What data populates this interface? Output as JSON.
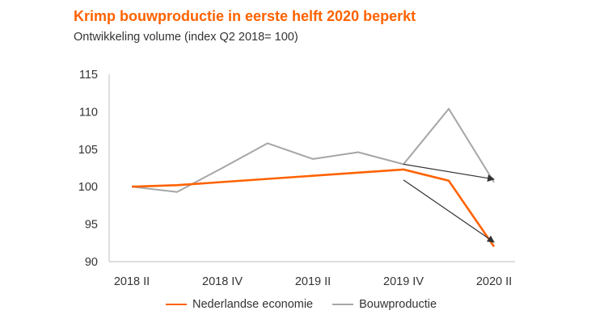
{
  "title": "Krimp bouwproductie in eerste helft 2020 beperkt",
  "subtitle": "Ontwikkeling volume (index Q2 2018= 100)",
  "colors": {
    "nederlandse_economie": "#ff6200",
    "bouwproductie": "#a6a6a6",
    "arrow": "#333333",
    "axis": "#bfbfbf",
    "text": "#333333"
  },
  "chart_data": {
    "type": "line",
    "x": [
      "2018 II",
      "2018 III",
      "2018 IV",
      "2019 I",
      "2019 II",
      "2019 III",
      "2019 IV",
      "2020 I",
      "2020 II"
    ],
    "x_tick_labels": [
      "2018 II",
      "2018 IV",
      "2019 II",
      "2019 IV",
      "2020 II"
    ],
    "y_ticks": [
      90,
      95,
      100,
      105,
      110,
      115
    ],
    "ylim": [
      90,
      115
    ],
    "grid": false,
    "legend_position": "bottom",
    "series": [
      {
        "name": "Nederlandse economie",
        "color": "#ff6200",
        "values": [
          100,
          100.2,
          null,
          null,
          null,
          null,
          102.3,
          100.8,
          92
        ]
      },
      {
        "name": "Bouwproductie",
        "color": "#a6a6a6",
        "values": [
          100,
          99.3,
          102.5,
          105.8,
          103.7,
          104.6,
          103.0,
          110.4,
          100.6
        ]
      }
    ],
    "arrows": [
      {
        "from": [
          "2019 IV",
          103.0
        ],
        "to": [
          "2020 II",
          101.0
        ]
      },
      {
        "from": [
          "2019 IV",
          100.9
        ],
        "to": [
          "2020 II",
          92.6
        ]
      }
    ]
  }
}
